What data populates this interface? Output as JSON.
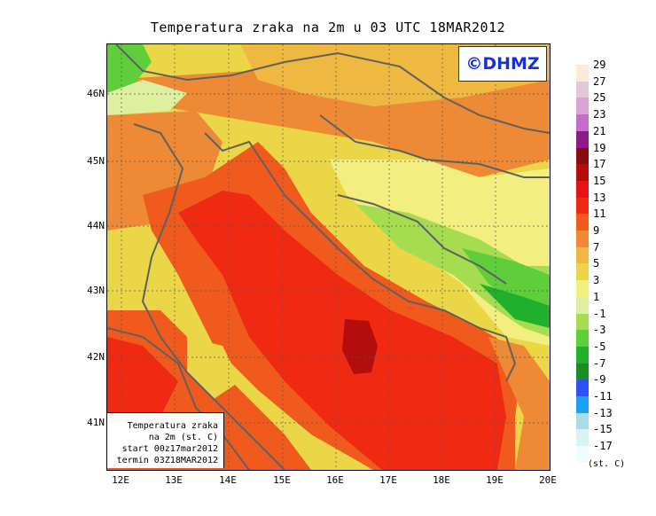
{
  "title": "Temperatura zraka na 2m u 03 UTC 18MAR2012",
  "watermark": "©DHMZ",
  "info_box": {
    "line1": "Temperatura zraka",
    "line2": "na 2m (st. C)",
    "line3": "start 00z17mar2012",
    "line4": "termin 03Z18MAR2012"
  },
  "axes": {
    "lat_labels": [
      "46N",
      "45N",
      "44N",
      "43N",
      "42N",
      "41N"
    ],
    "lon_labels": [
      "12E",
      "13E",
      "14E",
      "15E",
      "16E",
      "17E",
      "18E",
      "19E",
      "20E"
    ]
  },
  "legend": {
    "unit": "(st. C)",
    "levels": [
      {
        "label": "29",
        "color": "#fde9d9"
      },
      {
        "label": "27",
        "color": "#e2c9d8"
      },
      {
        "label": "25",
        "color": "#dca4d6"
      },
      {
        "label": "23",
        "color": "#c76ac9"
      },
      {
        "label": "21",
        "color": "#8b1a8a"
      },
      {
        "label": "19",
        "color": "#8a0c0c"
      },
      {
        "label": "17",
        "color": "#b40d0d"
      },
      {
        "label": "15",
        "color": "#e51414"
      },
      {
        "label": "13",
        "color": "#f02a12"
      },
      {
        "label": "11",
        "color": "#f05a1c"
      },
      {
        "label": "9",
        "color": "#ee8a35"
      },
      {
        "label": "7",
        "color": "#efb840"
      },
      {
        "label": "5",
        "color": "#ebd648"
      },
      {
        "label": "3",
        "color": "#f2ee80"
      },
      {
        "label": "1",
        "color": "#dfefa0"
      },
      {
        "label": "-1",
        "color": "#a5dc50"
      },
      {
        "label": "-3",
        "color": "#5ecf3a"
      },
      {
        "label": "-5",
        "color": "#21b02b"
      },
      {
        "label": "-7",
        "color": "#1a8e22"
      },
      {
        "label": "-9",
        "color": "#3050f0"
      },
      {
        "label": "-11",
        "color": "#1aa0f0"
      },
      {
        "label": "-13",
        "color": "#a8dce8"
      },
      {
        "label": "-15",
        "color": "#d8f2f6"
      },
      {
        "label": "-17",
        "color": "#eefcff"
      }
    ]
  },
  "colors": {
    "sea_warm": "#f02a12",
    "sea_core": "#b40d0d",
    "coast_line": "#606060"
  }
}
